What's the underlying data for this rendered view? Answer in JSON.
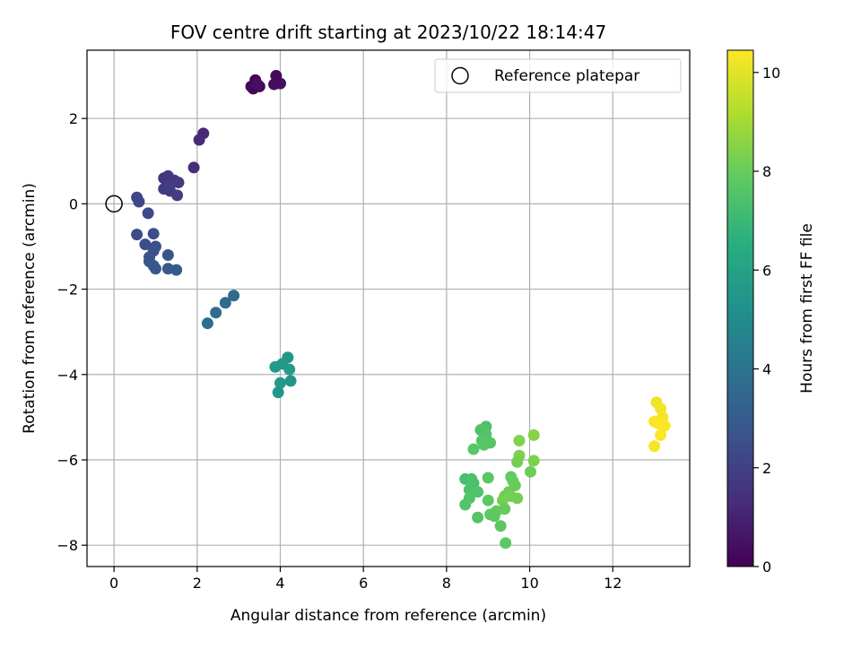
{
  "chart_data": {
    "type": "scatter",
    "title": "FOV centre drift starting at 2023/10/22 18:14:47",
    "xlabel": "Angular distance from reference (arcmin)",
    "ylabel": "Rotation from reference (arcmin)",
    "xlim": [
      -0.65,
      13.85
    ],
    "ylim": [
      -8.5,
      3.6
    ],
    "xticks": [
      0,
      2,
      4,
      6,
      8,
      10,
      12
    ],
    "yticks": [
      -8,
      -6,
      -4,
      -2,
      0,
      2
    ],
    "grid": true,
    "legend": {
      "placement": "top-right",
      "entries": [
        "Reference platepar"
      ]
    },
    "reference_point": {
      "x": 0,
      "y": 0,
      "label": "Reference platepar"
    },
    "colorbar": {
      "label": "Hours from first FF file",
      "colormap": "viridis",
      "range": [
        0,
        10.45
      ],
      "ticks": [
        0,
        2,
        4,
        6,
        8,
        10
      ]
    },
    "points": [
      {
        "x": 3.3,
        "y": 2.75,
        "c": 0.1
      },
      {
        "x": 3.4,
        "y": 2.9,
        "c": 0.15
      },
      {
        "x": 3.35,
        "y": 2.7,
        "c": 0.2
      },
      {
        "x": 3.5,
        "y": 2.75,
        "c": 0.25
      },
      {
        "x": 3.9,
        "y": 3.0,
        "c": 0.3
      },
      {
        "x": 3.85,
        "y": 2.8,
        "c": 0.35
      },
      {
        "x": 4.0,
        "y": 2.82,
        "c": 0.4
      },
      {
        "x": 3.45,
        "y": 2.8,
        "c": 0.45
      },
      {
        "x": 2.15,
        "y": 1.65,
        "c": 1.2
      },
      {
        "x": 2.05,
        "y": 1.5,
        "c": 1.25
      },
      {
        "x": 1.92,
        "y": 0.85,
        "c": 1.3
      },
      {
        "x": 1.2,
        "y": 0.6,
        "c": 1.6
      },
      {
        "x": 1.3,
        "y": 0.65,
        "c": 1.65
      },
      {
        "x": 1.45,
        "y": 0.55,
        "c": 1.7
      },
      {
        "x": 1.55,
        "y": 0.5,
        "c": 1.75
      },
      {
        "x": 1.2,
        "y": 0.35,
        "c": 1.8
      },
      {
        "x": 1.35,
        "y": 0.3,
        "c": 1.85
      },
      {
        "x": 1.52,
        "y": 0.2,
        "c": 1.9
      },
      {
        "x": 1.35,
        "y": 0.45,
        "c": 1.95
      },
      {
        "x": 0.55,
        "y": 0.15,
        "c": 2.2
      },
      {
        "x": 0.6,
        "y": 0.05,
        "c": 2.25
      },
      {
        "x": 0.82,
        "y": -0.22,
        "c": 2.3
      },
      {
        "x": 0.55,
        "y": -0.72,
        "c": 2.4
      },
      {
        "x": 0.95,
        "y": -0.7,
        "c": 2.45
      },
      {
        "x": 0.75,
        "y": -0.95,
        "c": 2.5
      },
      {
        "x": 1.0,
        "y": -1.0,
        "c": 2.55
      },
      {
        "x": 0.95,
        "y": -1.1,
        "c": 2.6
      },
      {
        "x": 0.85,
        "y": -1.25,
        "c": 2.65
      },
      {
        "x": 0.85,
        "y": -1.35,
        "c": 2.7
      },
      {
        "x": 1.3,
        "y": -1.2,
        "c": 2.75
      },
      {
        "x": 0.95,
        "y": -1.45,
        "c": 2.8
      },
      {
        "x": 1.0,
        "y": -1.52,
        "c": 2.85
      },
      {
        "x": 1.3,
        "y": -1.52,
        "c": 2.9
      },
      {
        "x": 1.5,
        "y": -1.55,
        "c": 2.95
      },
      {
        "x": 2.88,
        "y": -2.15,
        "c": 3.6
      },
      {
        "x": 2.68,
        "y": -2.32,
        "c": 3.65
      },
      {
        "x": 2.45,
        "y": -2.55,
        "c": 3.7
      },
      {
        "x": 2.25,
        "y": -2.8,
        "c": 3.75
      },
      {
        "x": 4.18,
        "y": -3.6,
        "c": 5.5
      },
      {
        "x": 4.05,
        "y": -3.75,
        "c": 5.55
      },
      {
        "x": 3.88,
        "y": -3.82,
        "c": 5.6
      },
      {
        "x": 4.22,
        "y": -3.88,
        "c": 5.75
      },
      {
        "x": 4.0,
        "y": -4.2,
        "c": 5.6
      },
      {
        "x": 4.25,
        "y": -4.15,
        "c": 5.5
      },
      {
        "x": 3.95,
        "y": -4.42,
        "c": 5.45
      },
      {
        "x": 8.95,
        "y": -5.22,
        "c": 7.4
      },
      {
        "x": 8.82,
        "y": -5.3,
        "c": 7.5
      },
      {
        "x": 8.95,
        "y": -5.4,
        "c": 7.55
      },
      {
        "x": 8.85,
        "y": -5.55,
        "c": 7.6
      },
      {
        "x": 9.05,
        "y": -5.6,
        "c": 7.65
      },
      {
        "x": 8.9,
        "y": -5.65,
        "c": 7.7
      },
      {
        "x": 8.65,
        "y": -5.75,
        "c": 7.75
      },
      {
        "x": 9.75,
        "y": -5.55,
        "c": 8.4
      },
      {
        "x": 10.1,
        "y": -5.42,
        "c": 8.5
      },
      {
        "x": 9.75,
        "y": -5.9,
        "c": 8.3
      },
      {
        "x": 9.7,
        "y": -6.05,
        "c": 8.2
      },
      {
        "x": 10.1,
        "y": -6.02,
        "c": 8.35
      },
      {
        "x": 10.02,
        "y": -6.28,
        "c": 8.1
      },
      {
        "x": 8.45,
        "y": -6.45,
        "c": 7.3
      },
      {
        "x": 8.6,
        "y": -6.45,
        "c": 7.35
      },
      {
        "x": 8.65,
        "y": -6.55,
        "c": 7.4
      },
      {
        "x": 8.55,
        "y": -6.7,
        "c": 7.45
      },
      {
        "x": 8.75,
        "y": -6.75,
        "c": 7.5
      },
      {
        "x": 8.55,
        "y": -6.9,
        "c": 7.55
      },
      {
        "x": 8.45,
        "y": -7.05,
        "c": 7.6
      },
      {
        "x": 9.0,
        "y": -6.42,
        "c": 7.7
      },
      {
        "x": 9.55,
        "y": -6.4,
        "c": 7.9
      },
      {
        "x": 9.6,
        "y": -6.5,
        "c": 7.95
      },
      {
        "x": 9.65,
        "y": -6.6,
        "c": 8.0
      },
      {
        "x": 9.5,
        "y": -6.75,
        "c": 8.05
      },
      {
        "x": 9.4,
        "y": -6.85,
        "c": 8.1
      },
      {
        "x": 9.55,
        "y": -6.85,
        "c": 8.15
      },
      {
        "x": 9.7,
        "y": -6.9,
        "c": 8.2
      },
      {
        "x": 9.35,
        "y": -6.95,
        "c": 8.25
      },
      {
        "x": 9.0,
        "y": -6.95,
        "c": 7.8
      },
      {
        "x": 9.4,
        "y": -7.15,
        "c": 7.95
      },
      {
        "x": 9.2,
        "y": -7.2,
        "c": 7.9
      },
      {
        "x": 9.05,
        "y": -7.28,
        "c": 7.85
      },
      {
        "x": 9.15,
        "y": -7.32,
        "c": 7.8
      },
      {
        "x": 8.75,
        "y": -7.35,
        "c": 7.6
      },
      {
        "x": 9.3,
        "y": -7.55,
        "c": 7.75
      },
      {
        "x": 9.42,
        "y": -7.95,
        "c": 7.8
      },
      {
        "x": 13.05,
        "y": -4.65,
        "c": 10.2
      },
      {
        "x": 13.15,
        "y": -4.8,
        "c": 10.25
      },
      {
        "x": 13.2,
        "y": -5.0,
        "c": 10.3
      },
      {
        "x": 13.0,
        "y": -5.1,
        "c": 10.35
      },
      {
        "x": 13.1,
        "y": -5.15,
        "c": 10.4
      },
      {
        "x": 13.25,
        "y": -5.2,
        "c": 10.45
      },
      {
        "x": 13.15,
        "y": -5.42,
        "c": 10.4
      },
      {
        "x": 13.0,
        "y": -5.68,
        "c": 10.35
      }
    ]
  }
}
